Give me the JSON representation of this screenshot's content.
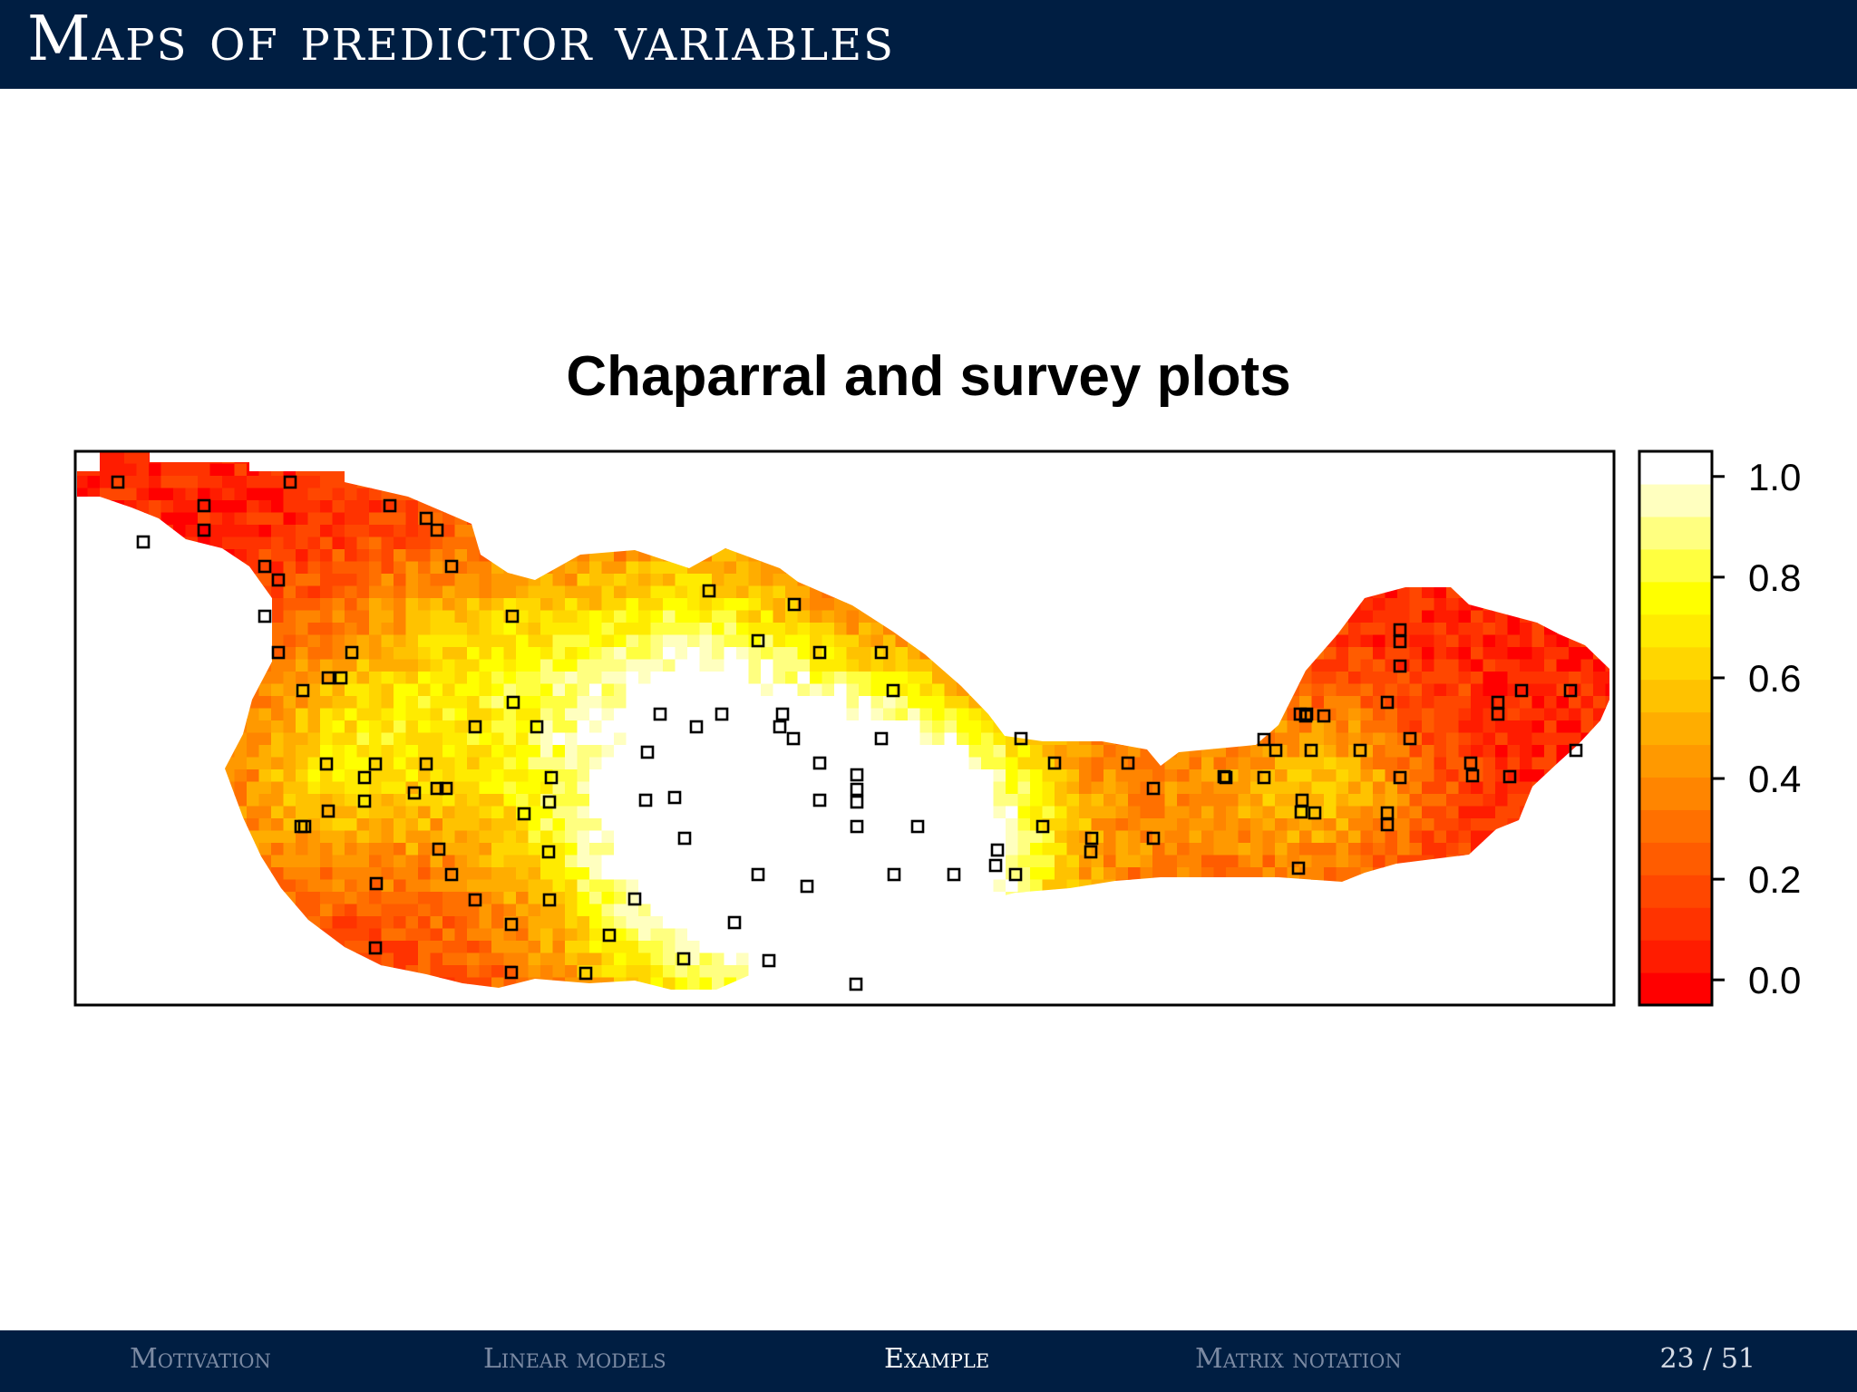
{
  "slide": {
    "title": "Maps of predictor variables"
  },
  "footer": {
    "nav": [
      {
        "label": "Motivation",
        "active": false
      },
      {
        "label": "Linear models",
        "active": false
      },
      {
        "label": "Example",
        "active": true
      },
      {
        "label": "Matrix notation",
        "active": false
      }
    ],
    "page": "23 / 51"
  },
  "chart_data": {
    "type": "heatmap",
    "title": "Chaparral and survey plots",
    "colorbar": {
      "range": [
        -0.05,
        1.05
      ],
      "ticks": [
        0.0,
        0.2,
        0.4,
        0.6,
        0.8,
        1.0
      ],
      "tick_labels": [
        "0.0",
        "0.2",
        "0.4",
        "0.6",
        "0.8",
        "1.0"
      ],
      "colors": [
        "#ff0000",
        "#ff1c00",
        "#ff3300",
        "#ff4700",
        "#ff5c00",
        "#ff7000",
        "#ff8500",
        "#ff9900",
        "#ffad00",
        "#ffc200",
        "#ffd600",
        "#ffeb00",
        "#ffff00",
        "#ffff40",
        "#ffff80",
        "#ffffbf",
        "#ffffff"
      ]
    },
    "series": [
      {
        "name": "chaparral",
        "kind": "raster-cover-fraction"
      },
      {
        "name": "survey plots",
        "kind": "points",
        "marker": "open-square"
      }
    ]
  }
}
